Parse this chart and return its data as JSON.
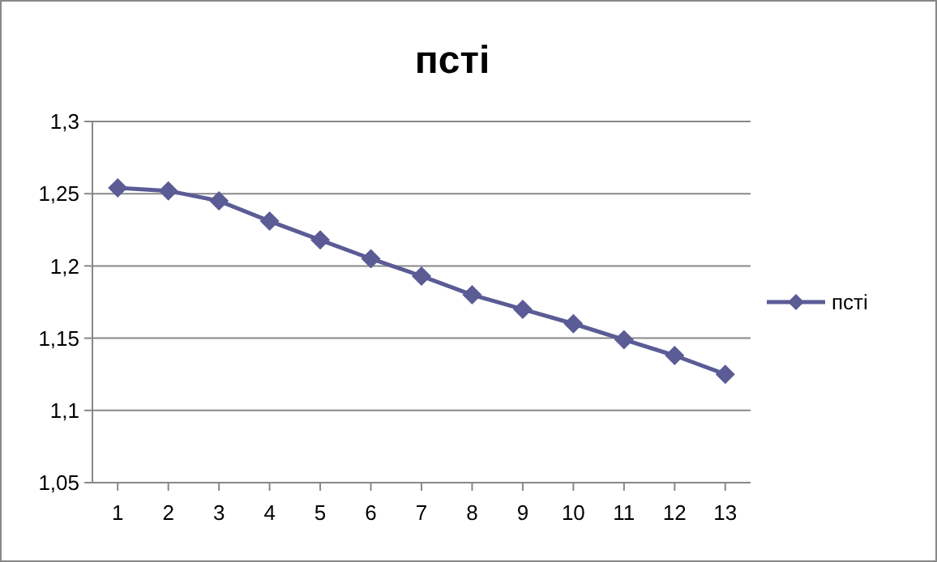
{
  "chart_data": {
    "type": "line",
    "title": "пcтi",
    "x": [
      1,
      2,
      3,
      4,
      5,
      6,
      7,
      8,
      9,
      10,
      11,
      12,
      13
    ],
    "series": [
      {
        "name": "пcтi",
        "color": "#5b5b96",
        "values": [
          1.254,
          1.252,
          1.245,
          1.231,
          1.218,
          1.205,
          1.193,
          1.18,
          1.17,
          1.16,
          1.149,
          1.138,
          1.125
        ]
      }
    ],
    "xlim": [
      0.5,
      13.5
    ],
    "xticks": [
      1,
      2,
      3,
      4,
      5,
      6,
      7,
      8,
      9,
      10,
      11,
      12,
      13
    ],
    "ylim": [
      1.05,
      1.3
    ],
    "yticks": [
      {
        "value": 1.05,
        "label": "1,05"
      },
      {
        "value": 1.1,
        "label": "1,1"
      },
      {
        "value": 1.15,
        "label": "1,15"
      },
      {
        "value": 1.2,
        "label": "1,2"
      },
      {
        "value": 1.25,
        "label": "1,25"
      },
      {
        "value": 1.3,
        "label": "1,3"
      }
    ],
    "grid": "y",
    "legend": "right",
    "marker": "diamond",
    "line_style": "solid"
  }
}
